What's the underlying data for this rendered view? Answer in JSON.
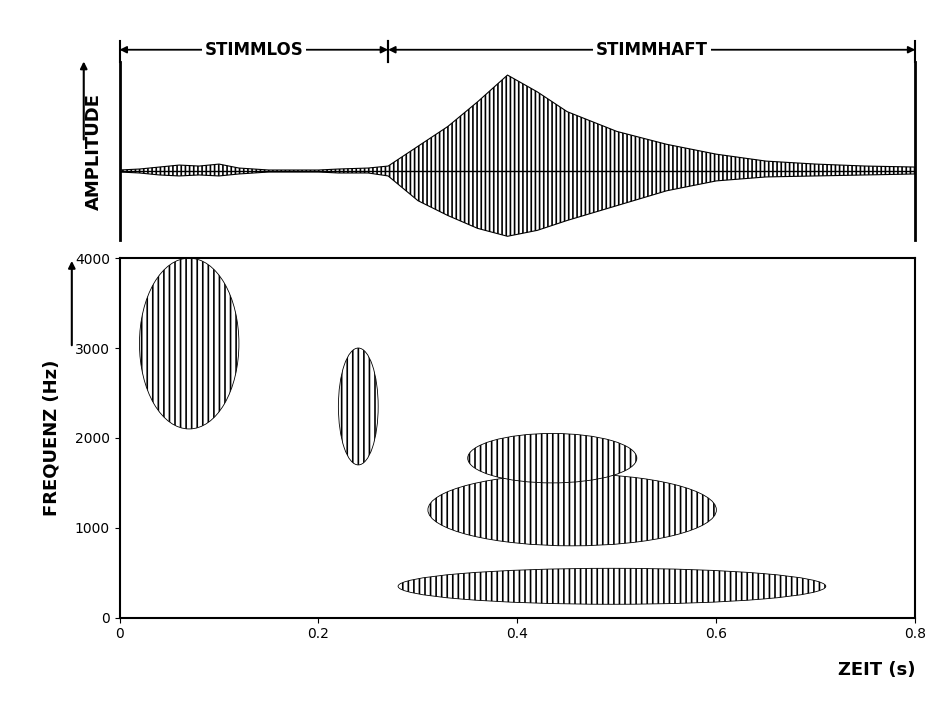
{
  "chart_data": [
    {
      "type": "area",
      "segments": [
        {
          "text": "STIMMLOS",
          "x": [
            0,
            0.27
          ]
        },
        {
          "text": "STIMMHAFT",
          "x": [
            0.27,
            0.8
          ]
        }
      ],
      "y_label": "AMPLITUDE",
      "x": [
        0,
        0.02,
        0.04,
        0.06,
        0.08,
        0.1,
        0.12,
        0.15,
        0.2,
        0.22,
        0.25,
        0.27,
        0.3,
        0.33,
        0.36,
        0.39,
        0.42,
        0.45,
        0.5,
        0.55,
        0.6,
        0.65,
        0.7,
        0.75,
        0.8
      ],
      "upper": [
        0.01,
        0.02,
        0.04,
        0.06,
        0.05,
        0.07,
        0.03,
        0.01,
        0.01,
        0.02,
        0.03,
        0.05,
        0.25,
        0.45,
        0.7,
        0.97,
        0.8,
        0.6,
        0.4,
        0.27,
        0.17,
        0.1,
        0.07,
        0.05,
        0.04
      ],
      "lower": [
        -0.01,
        -0.02,
        -0.04,
        -0.05,
        -0.04,
        -0.05,
        -0.03,
        -0.01,
        -0.01,
        -0.02,
        -0.02,
        -0.05,
        -0.3,
        -0.45,
        -0.58,
        -0.66,
        -0.6,
        -0.5,
        -0.35,
        -0.2,
        -0.1,
        -0.06,
        -0.05,
        -0.04,
        -0.03
      ],
      "xlim": [
        0,
        0.8
      ],
      "ylim": [
        -0.7,
        1.1
      ],
      "tick_labels": false,
      "color": "#000000"
    },
    {
      "type": "spectrogram",
      "y_label": "FREQUENZ (Hz)",
      "x_label": "ZEIT (s)",
      "regions": [
        {
          "t": [
            0.02,
            0.12
          ],
          "f": [
            2100,
            4000
          ]
        },
        {
          "t": [
            0.22,
            0.26
          ],
          "f": [
            1700,
            3000
          ]
        },
        {
          "t": [
            0.28,
            0.71
          ],
          "f": [
            150,
            550
          ]
        },
        {
          "t": [
            0.31,
            0.6
          ],
          "f": [
            800,
            1600
          ]
        },
        {
          "t": [
            0.35,
            0.52
          ],
          "f": [
            1500,
            2050
          ]
        }
      ],
      "xlim": [
        0,
        0.8
      ],
      "ylim": [
        0,
        4000
      ],
      "xticks": [
        0,
        0.2,
        0.4,
        0.6,
        0.8
      ],
      "yticks": [
        0,
        1000,
        2000,
        3000,
        4000
      ],
      "color": "#000000"
    }
  ]
}
